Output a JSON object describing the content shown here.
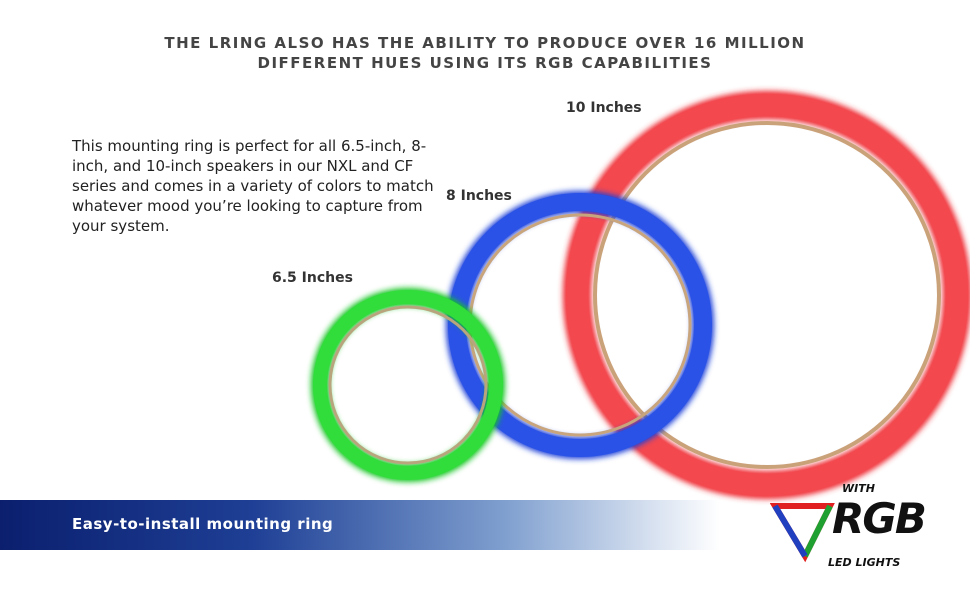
{
  "header": {
    "title_line1": "THE LRING ALSO HAS THE ABILITY TO PRODUCE OVER 16 MILLION",
    "title_line2": "DIFFERENT HUES USING ITS RGB CAPABILITIES"
  },
  "description": "This mounting ring is perfect for all 6.5-inch, 8-inch, and 10-inch speakers in our NXL and CF series and comes in a variety of colors to match whatever mood you’re looking to capture from your system.",
  "rings": [
    {
      "label": "6.5 Inches"
    },
    {
      "label": "8 Inches"
    },
    {
      "label": "10 Inches"
    }
  ],
  "banner": "Easy-to-install mounting ring",
  "logo": {
    "top": "WITH",
    "main": "RGB",
    "bottom": "LED LIGHTS"
  }
}
